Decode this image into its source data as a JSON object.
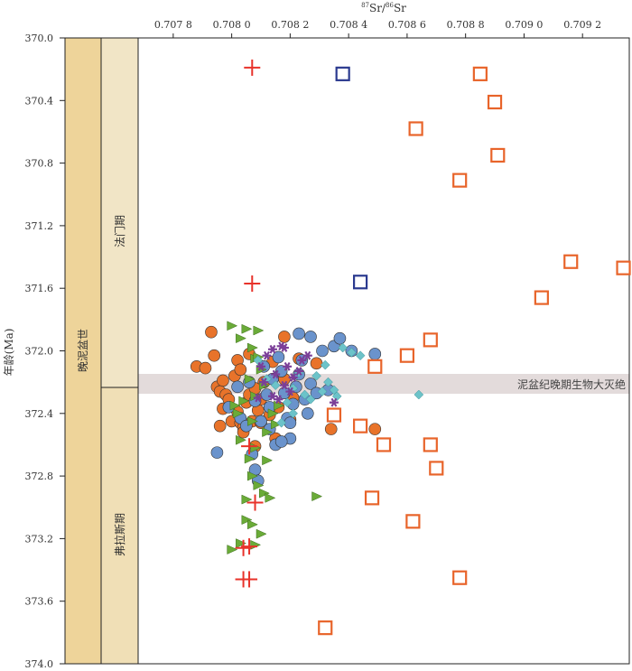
{
  "chart_data": {
    "type": "scatter",
    "title": "",
    "xlabel": {
      "sup1": "87",
      "base1": "Sr/",
      "sup2": "86",
      "base2": "Sr"
    },
    "ylabel": "年龄(Ma)",
    "xlim": [
      0.70768,
      0.70936
    ],
    "ylim": [
      370.0,
      374.0
    ],
    "x_ticks": [
      {
        "value": 0.7078,
        "label": "0.707 8"
      },
      {
        "value": 0.708,
        "label": "0.708 0"
      },
      {
        "value": 0.7082,
        "label": "0.708 2"
      },
      {
        "value": 0.7084,
        "label": "0.708 4"
      },
      {
        "value": 0.7086,
        "label": "0.708 6"
      },
      {
        "value": 0.7088,
        "label": "0.708 8"
      },
      {
        "value": 0.709,
        "label": "0.709 0"
      },
      {
        "value": 0.7092,
        "label": "0.709 2"
      }
    ],
    "y_ticks": [
      {
        "value": 370.0,
        "label": "370.0"
      },
      {
        "value": 370.4,
        "label": "370.4"
      },
      {
        "value": 370.8,
        "label": "370.8"
      },
      {
        "value": 371.2,
        "label": "371.2"
      },
      {
        "value": 371.6,
        "label": "371.6"
      },
      {
        "value": 372.0,
        "label": "372.0"
      },
      {
        "value": 372.4,
        "label": "372.4"
      },
      {
        "value": 372.8,
        "label": "372.8"
      },
      {
        "value": 373.2,
        "label": "373.2"
      },
      {
        "value": 373.6,
        "label": "373.6"
      },
      {
        "value": 374.0,
        "label": "374.0"
      }
    ],
    "grid": false,
    "stratigraphy": {
      "epoch": {
        "label": "晚泥盆世",
        "from": 370.0,
        "to": 374.0
      },
      "stages": [
        {
          "label": "法门期",
          "from": 370.0,
          "to": 372.22
        },
        {
          "label": "弗拉斯期",
          "from": 372.22,
          "to": 374.0
        }
      ]
    },
    "event": {
      "label": "泥盆纪晚期生物大灭绝",
      "from": 372.14,
      "to": 372.26,
      "color": "#e3dbdb"
    },
    "series": [
      {
        "marker": "plus",
        "color": "#e8322a",
        "points": [
          [
            0.70807,
            370.19
          ],
          [
            0.70807,
            371.57
          ],
          [
            0.70806,
            372.61
          ],
          [
            0.70808,
            372.97
          ],
          [
            0.70806,
            373.25
          ],
          [
            0.70804,
            373.26
          ],
          [
            0.70806,
            373.46
          ],
          [
            0.70804,
            373.46
          ]
        ]
      },
      {
        "marker": "open-square",
        "color": "#e8642a",
        "points": [
          [
            0.70885,
            370.23
          ],
          [
            0.7089,
            370.41
          ],
          [
            0.70863,
            370.58
          ],
          [
            0.70891,
            370.75
          ],
          [
            0.70878,
            370.91
          ],
          [
            0.70916,
            371.43
          ],
          [
            0.70934,
            371.47
          ],
          [
            0.70906,
            371.66
          ],
          [
            0.70868,
            371.93
          ],
          [
            0.7086,
            372.03
          ],
          [
            0.70849,
            372.1
          ],
          [
            0.70835,
            372.41
          ],
          [
            0.70844,
            372.48
          ],
          [
            0.70852,
            372.6
          ],
          [
            0.70868,
            372.6
          ],
          [
            0.7087,
            372.75
          ],
          [
            0.70848,
            372.94
          ],
          [
            0.70862,
            373.09
          ],
          [
            0.70878,
            373.45
          ],
          [
            0.70832,
            373.77
          ]
        ]
      },
      {
        "marker": "open-square",
        "color": "#2b3a8f",
        "points": [
          [
            0.70838,
            370.23
          ],
          [
            0.70844,
            371.56
          ]
        ]
      },
      {
        "marker": "circle",
        "color": "#e8732a",
        "points": [
          [
            0.70788,
            372.1
          ],
          [
            0.70791,
            372.11
          ],
          [
            0.70793,
            371.88
          ],
          [
            0.70794,
            372.03
          ],
          [
            0.70795,
            372.23
          ],
          [
            0.70797,
            372.19
          ],
          [
            0.70796,
            372.26
          ],
          [
            0.70797,
            372.37
          ],
          [
            0.70798,
            372.28
          ],
          [
            0.70799,
            372.31
          ],
          [
            0.708,
            372.45
          ],
          [
            0.70801,
            372.16
          ],
          [
            0.70802,
            372.06
          ],
          [
            0.70802,
            372.39
          ],
          [
            0.70803,
            372.46
          ],
          [
            0.70804,
            372.49
          ],
          [
            0.70803,
            372.12
          ],
          [
            0.70805,
            372.33
          ],
          [
            0.70806,
            372.28
          ],
          [
            0.70806,
            372.02
          ],
          [
            0.70807,
            372.45
          ],
          [
            0.70808,
            372.61
          ],
          [
            0.70809,
            372.38
          ],
          [
            0.7081,
            372.46
          ],
          [
            0.7081,
            372.31
          ],
          [
            0.70811,
            372.2
          ],
          [
            0.70813,
            372.41
          ],
          [
            0.70814,
            372.07
          ],
          [
            0.70815,
            372.56
          ],
          [
            0.70816,
            372.36
          ],
          [
            0.70818,
            371.91
          ],
          [
            0.70818,
            372.18
          ],
          [
            0.7082,
            372.44
          ],
          [
            0.70821,
            372.3
          ],
          [
            0.70823,
            372.05
          ],
          [
            0.70829,
            372.08
          ],
          [
            0.70804,
            372.52
          ],
          [
            0.70796,
            372.48
          ],
          [
            0.70808,
            372.24
          ],
          [
            0.70834,
            372.5
          ],
          [
            0.70849,
            372.5
          ]
        ]
      },
      {
        "marker": "circle",
        "color": "#6a93cc",
        "points": [
          [
            0.70802,
            372.23
          ],
          [
            0.70803,
            372.43
          ],
          [
            0.70805,
            372.48
          ],
          [
            0.70806,
            372.2
          ],
          [
            0.70808,
            372.32
          ],
          [
            0.70807,
            372.66
          ],
          [
            0.70808,
            372.76
          ],
          [
            0.70809,
            372.83
          ],
          [
            0.70811,
            372.1
          ],
          [
            0.70812,
            372.28
          ],
          [
            0.70813,
            372.5
          ],
          [
            0.70813,
            372.36
          ],
          [
            0.70814,
            372.18
          ],
          [
            0.70815,
            372.6
          ],
          [
            0.70816,
            372.04
          ],
          [
            0.70817,
            372.13
          ],
          [
            0.70818,
            372.27
          ],
          [
            0.70819,
            372.43
          ],
          [
            0.7082,
            372.56
          ],
          [
            0.7082,
            372.46
          ],
          [
            0.70821,
            372.34
          ],
          [
            0.70822,
            372.23
          ],
          [
            0.70823,
            372.15
          ],
          [
            0.70823,
            371.89
          ],
          [
            0.70824,
            372.06
          ],
          [
            0.70825,
            372.31
          ],
          [
            0.70826,
            372.4
          ],
          [
            0.70827,
            372.21
          ],
          [
            0.70829,
            372.27
          ],
          [
            0.70831,
            372.0
          ],
          [
            0.70833,
            372.25
          ],
          [
            0.70835,
            371.97
          ],
          [
            0.70837,
            371.92
          ],
          [
            0.70841,
            372.0
          ],
          [
            0.70849,
            372.02
          ],
          [
            0.70795,
            372.65
          ],
          [
            0.70799,
            372.36
          ],
          [
            0.70817,
            372.58
          ],
          [
            0.70827,
            371.91
          ],
          [
            0.7081,
            372.45
          ]
        ]
      },
      {
        "marker": "triangle-right",
        "color": "#6aab38",
        "points": [
          [
            0.708,
            371.84
          ],
          [
            0.70803,
            371.92
          ],
          [
            0.70805,
            371.86
          ],
          [
            0.70807,
            371.98
          ],
          [
            0.70808,
            372.05
          ],
          [
            0.70809,
            371.87
          ],
          [
            0.70806,
            372.18
          ],
          [
            0.70804,
            372.32
          ],
          [
            0.70807,
            372.45
          ],
          [
            0.70808,
            372.29
          ],
          [
            0.7081,
            372.12
          ],
          [
            0.70811,
            372.22
          ],
          [
            0.70803,
            372.57
          ],
          [
            0.70806,
            372.69
          ],
          [
            0.70807,
            372.8
          ],
          [
            0.70809,
            372.86
          ],
          [
            0.70811,
            372.91
          ],
          [
            0.70813,
            372.94
          ],
          [
            0.70805,
            372.95
          ],
          [
            0.70808,
            372.62
          ],
          [
            0.70812,
            372.52
          ],
          [
            0.70814,
            372.4
          ],
          [
            0.70816,
            372.35
          ],
          [
            0.70812,
            372.7
          ],
          [
            0.70805,
            373.08
          ],
          [
            0.70807,
            373.11
          ],
          [
            0.7081,
            373.17
          ],
          [
            0.70803,
            373.23
          ],
          [
            0.70808,
            373.24
          ],
          [
            0.708,
            373.27
          ],
          [
            0.70829,
            372.93
          ],
          [
            0.70801,
            372.35
          ],
          [
            0.70815,
            372.47
          ],
          [
            0.70809,
            372.04
          ],
          [
            0.70802,
            372.4
          ]
        ]
      },
      {
        "marker": "diamond",
        "color": "#6cc3c9",
        "points": [
          [
            0.70809,
            372.06
          ],
          [
            0.70815,
            372.22
          ],
          [
            0.70817,
            372.46
          ],
          [
            0.70819,
            372.33
          ],
          [
            0.70821,
            372.24
          ],
          [
            0.70823,
            372.14
          ],
          [
            0.70825,
            372.28
          ],
          [
            0.70827,
            372.31
          ],
          [
            0.70829,
            372.16
          ],
          [
            0.70831,
            372.26
          ],
          [
            0.70833,
            372.2
          ],
          [
            0.70835,
            372.25
          ],
          [
            0.70836,
            372.29
          ],
          [
            0.70832,
            372.09
          ],
          [
            0.70838,
            371.98
          ],
          [
            0.70841,
            372.01
          ],
          [
            0.70844,
            372.03
          ],
          [
            0.70821,
            372.4
          ],
          [
            0.70812,
            372.18
          ],
          [
            0.70864,
            372.28
          ]
        ]
      },
      {
        "marker": "asterisk",
        "color": "#7b3f98",
        "points": [
          [
            0.7081,
            372.1
          ],
          [
            0.70812,
            372.03
          ],
          [
            0.70814,
            371.99
          ],
          [
            0.70815,
            372.15
          ],
          [
            0.70817,
            371.97
          ],
          [
            0.70818,
            372.22
          ],
          [
            0.70819,
            372.1
          ],
          [
            0.7082,
            372.26
          ],
          [
            0.70821,
            372.17
          ],
          [
            0.70823,
            372.13
          ],
          [
            0.70824,
            372.06
          ],
          [
            0.70809,
            372.3
          ],
          [
            0.70814,
            372.29
          ],
          [
            0.70811,
            372.2
          ],
          [
            0.70816,
            372.31
          ],
          [
            0.70826,
            372.03
          ],
          [
            0.70835,
            372.33
          ],
          [
            0.70818,
            371.98
          ]
        ]
      }
    ]
  }
}
